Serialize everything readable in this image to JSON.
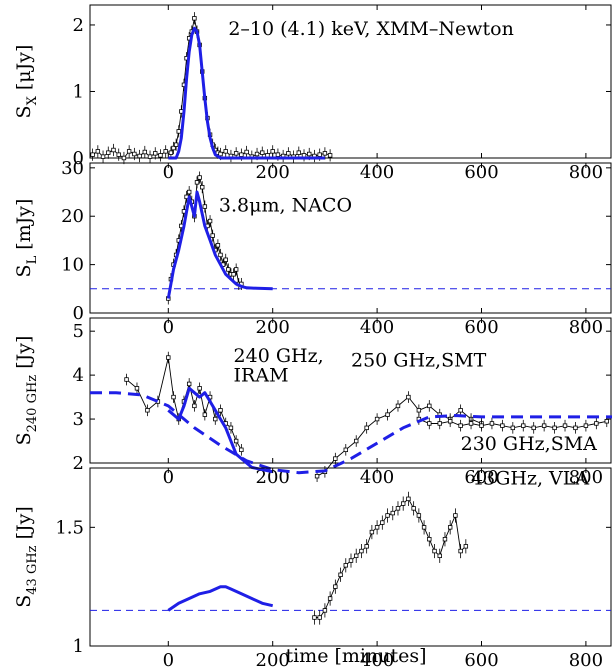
{
  "chart_data": [
    {
      "type": "line",
      "ylabel_main": "S",
      "ylabel_sub": "X",
      "ylabel_tail": " [μJy]",
      "ylim": [
        0,
        2.3
      ],
      "yticks": [
        0,
        1,
        2
      ],
      "xlim": [
        -150,
        850
      ],
      "xticks": [
        0,
        200,
        400,
        600,
        800
      ],
      "show_xticklabels": true,
      "annotations": [
        {
          "text": "2–10 (4.1) keV, XMM–Newton",
          "x": 115,
          "y": 1.85
        }
      ],
      "series": [
        {
          "style": "data",
          "x": [
            -145,
            -135,
            -125,
            -115,
            -105,
            -95,
            -85,
            -75,
            -65,
            -55,
            -45,
            -35,
            -25,
            -15,
            -5,
            5,
            10,
            15,
            20,
            25,
            30,
            35,
            40,
            45,
            50,
            55,
            60,
            65,
            70,
            75,
            80,
            85,
            90,
            95,
            100,
            110,
            120,
            130,
            140,
            150,
            160,
            170,
            180,
            190,
            200,
            210,
            220,
            230,
            240,
            250,
            260,
            270,
            280,
            290,
            300,
            310
          ],
          "y": [
            0.05,
            0.1,
            0.02,
            0.08,
            0.12,
            0.05,
            0.0,
            0.1,
            0.06,
            0.03,
            0.09,
            0.02,
            0.07,
            0.04,
            0.1,
            0.08,
            0.15,
            0.2,
            0.4,
            0.7,
            1.1,
            1.5,
            1.8,
            1.9,
            2.1,
            1.9,
            1.7,
            1.3,
            0.9,
            0.6,
            0.35,
            0.2,
            0.12,
            0.08,
            0.06,
            0.1,
            0.03,
            0.07,
            0.05,
            0.09,
            0.02,
            0.06,
            0.08,
            0.04,
            0.1,
            0.05,
            0.03,
            0.07,
            0.02,
            0.08,
            0.04,
            0.06,
            0.03,
            0.05,
            0.07,
            0.04
          ]
        },
        {
          "style": "model",
          "x": [
            0,
            15,
            20,
            25,
            30,
            35,
            40,
            45,
            50,
            55,
            60,
            65,
            70,
            75,
            80,
            85,
            90,
            100,
            110,
            200,
            300
          ],
          "y": [
            0,
            0,
            0.1,
            0.3,
            0.7,
            1.2,
            1.6,
            1.85,
            1.95,
            1.9,
            1.7,
            1.3,
            0.9,
            0.55,
            0.3,
            0.15,
            0.05,
            0,
            0,
            0,
            0
          ]
        }
      ]
    },
    {
      "type": "line",
      "ylabel_main": "S",
      "ylabel_sub": "L",
      "ylabel_tail": " [mJy]",
      "ylim": [
        0,
        31
      ],
      "yticks": [
        0,
        10,
        20,
        30
      ],
      "xlim": [
        -150,
        850
      ],
      "xticks": [
        0,
        200,
        400,
        600,
        800
      ],
      "show_xticklabels": true,
      "hline": 5,
      "annotations": [
        {
          "text": "3.8μm, NACO",
          "x": 97,
          "y": 21
        }
      ],
      "series": [
        {
          "style": "data",
          "x": [
            0,
            5,
            10,
            15,
            20,
            25,
            30,
            35,
            40,
            45,
            50,
            55,
            60,
            65,
            70,
            75,
            80,
            85,
            90,
            95,
            100,
            105,
            110,
            115,
            120,
            125,
            130,
            135,
            140
          ],
          "y": [
            3,
            7,
            10,
            12,
            15,
            18,
            21,
            24,
            25,
            23,
            20,
            27,
            28,
            26,
            22,
            18,
            19,
            16,
            13,
            14,
            12,
            10,
            11,
            9,
            8,
            8,
            9,
            6,
            6
          ]
        },
        {
          "style": "model",
          "x": [
            0,
            10,
            20,
            30,
            40,
            50,
            55,
            60,
            70,
            80,
            90,
            100,
            110,
            120,
            130,
            140,
            150,
            170,
            200
          ],
          "y": [
            3,
            9,
            13,
            18,
            24,
            20,
            25,
            23,
            18,
            15,
            12,
            10,
            8,
            7,
            6,
            5.5,
            5.2,
            5.1,
            5
          ]
        }
      ]
    },
    {
      "type": "line",
      "ylabel_main": "S",
      "ylabel_sub": "240 GHz",
      "ylabel_tail": " [Jy]",
      "ylim": [
        2,
        5.3
      ],
      "yticks": [
        2,
        3,
        4,
        5
      ],
      "xlim": [
        -150,
        850
      ],
      "xticks": [
        0,
        200,
        400,
        600,
        800
      ],
      "show_xticklabels": true,
      "annotations": [
        {
          "text": "240 GHz,",
          "x": 125,
          "y": 4.3
        },
        {
          "text": "IRAM",
          "x": 125,
          "y": 3.85
        },
        {
          "text": "250 GHz,SMT",
          "x": 350,
          "y": 4.2
        },
        {
          "text": "230 GHz,SMA",
          "x": 560,
          "y": 2.3
        }
      ],
      "series": [
        {
          "style": "data",
          "x": [
            -80,
            -60,
            -40,
            -20,
            0,
            10,
            20,
            30,
            40,
            50,
            60,
            70,
            80,
            90,
            100,
            110,
            120,
            130,
            140
          ],
          "y": [
            3.9,
            3.7,
            3.2,
            3.4,
            4.4,
            3.5,
            3.0,
            3.4,
            3.8,
            3.3,
            3.7,
            3.1,
            3.5,
            3.0,
            3.2,
            2.9,
            2.8,
            2.5,
            2.3
          ]
        },
        {
          "style": "data",
          "x": [
            285,
            300,
            320,
            340,
            360,
            380,
            400,
            420,
            440,
            460,
            480,
            500,
            520,
            540,
            560,
            580,
            600
          ],
          "y": [
            1.7,
            1.8,
            2.1,
            2.3,
            2.5,
            2.8,
            3.0,
            3.1,
            3.3,
            3.5,
            3.2,
            3.3,
            3.1,
            3.0,
            3.2,
            3.0,
            2.9
          ]
        },
        {
          "style": "data",
          "x": [
            480,
            500,
            520,
            540,
            560,
            580,
            600,
            620,
            640,
            660,
            680,
            700,
            720,
            740,
            760,
            780,
            800,
            820,
            840
          ],
          "y": [
            3.0,
            2.9,
            2.9,
            2.95,
            2.85,
            2.9,
            2.85,
            2.9,
            2.85,
            2.8,
            2.85,
            2.8,
            2.85,
            2.8,
            2.85,
            2.8,
            2.85,
            2.9,
            2.95
          ]
        },
        {
          "style": "model",
          "x": [
            0,
            10,
            20,
            30,
            40,
            50,
            60,
            70,
            80,
            90,
            100,
            110,
            120,
            130,
            140,
            150,
            160,
            200
          ],
          "y": [
            3.2,
            3.1,
            3.0,
            3.3,
            3.7,
            3.6,
            3.5,
            3.6,
            3.4,
            3.2,
            3.0,
            2.8,
            2.5,
            2.2,
            2.1,
            2.0,
            1.9,
            1.8
          ]
        },
        {
          "style": "dashed",
          "x": [
            -150,
            -100,
            -50,
            0,
            50,
            100,
            150,
            200,
            250,
            300,
            350,
            400,
            450,
            500,
            550,
            600,
            650,
            700,
            750,
            800,
            850
          ],
          "y": [
            3.6,
            3.6,
            3.55,
            3.3,
            2.8,
            2.4,
            2.05,
            1.85,
            1.78,
            1.82,
            2.1,
            2.45,
            2.8,
            3.05,
            3.08,
            3.05,
            3.05,
            3.05,
            3.05,
            3.05,
            3.05
          ]
        }
      ]
    },
    {
      "type": "line",
      "ylabel_main": "S",
      "ylabel_sub": "43 GHz",
      "ylabel_tail": " [Jy]",
      "ylim": [
        1,
        1.75
      ],
      "yticks": [
        1,
        1.5
      ],
      "xlim": [
        -150,
        850
      ],
      "xticks": [
        0,
        200,
        400,
        600,
        800
      ],
      "show_xticklabels": true,
      "hline": 1.15,
      "xlabel": "time [minutes]",
      "annotations": [
        {
          "text": "43GHz, VLA",
          "x": 580,
          "y": 1.68
        }
      ],
      "series": [
        {
          "style": "data",
          "x": [
            280,
            290,
            300,
            310,
            320,
            330,
            340,
            350,
            360,
            370,
            380,
            390,
            400,
            410,
            420,
            430,
            440,
            450,
            460,
            470,
            480,
            490,
            500,
            510,
            520,
            530,
            540,
            550,
            560,
            570
          ],
          "y": [
            1.12,
            1.12,
            1.15,
            1.2,
            1.25,
            1.3,
            1.34,
            1.36,
            1.38,
            1.4,
            1.42,
            1.48,
            1.5,
            1.52,
            1.55,
            1.56,
            1.58,
            1.6,
            1.62,
            1.58,
            1.55,
            1.5,
            1.45,
            1.4,
            1.38,
            1.45,
            1.5,
            1.55,
            1.4,
            1.42
          ]
        },
        {
          "style": "model",
          "x": [
            0,
            20,
            40,
            60,
            80,
            100,
            110,
            120,
            140,
            160,
            180,
            200
          ],
          "y": [
            1.15,
            1.18,
            1.2,
            1.22,
            1.23,
            1.25,
            1.25,
            1.24,
            1.22,
            1.2,
            1.18,
            1.17
          ]
        }
      ]
    }
  ]
}
